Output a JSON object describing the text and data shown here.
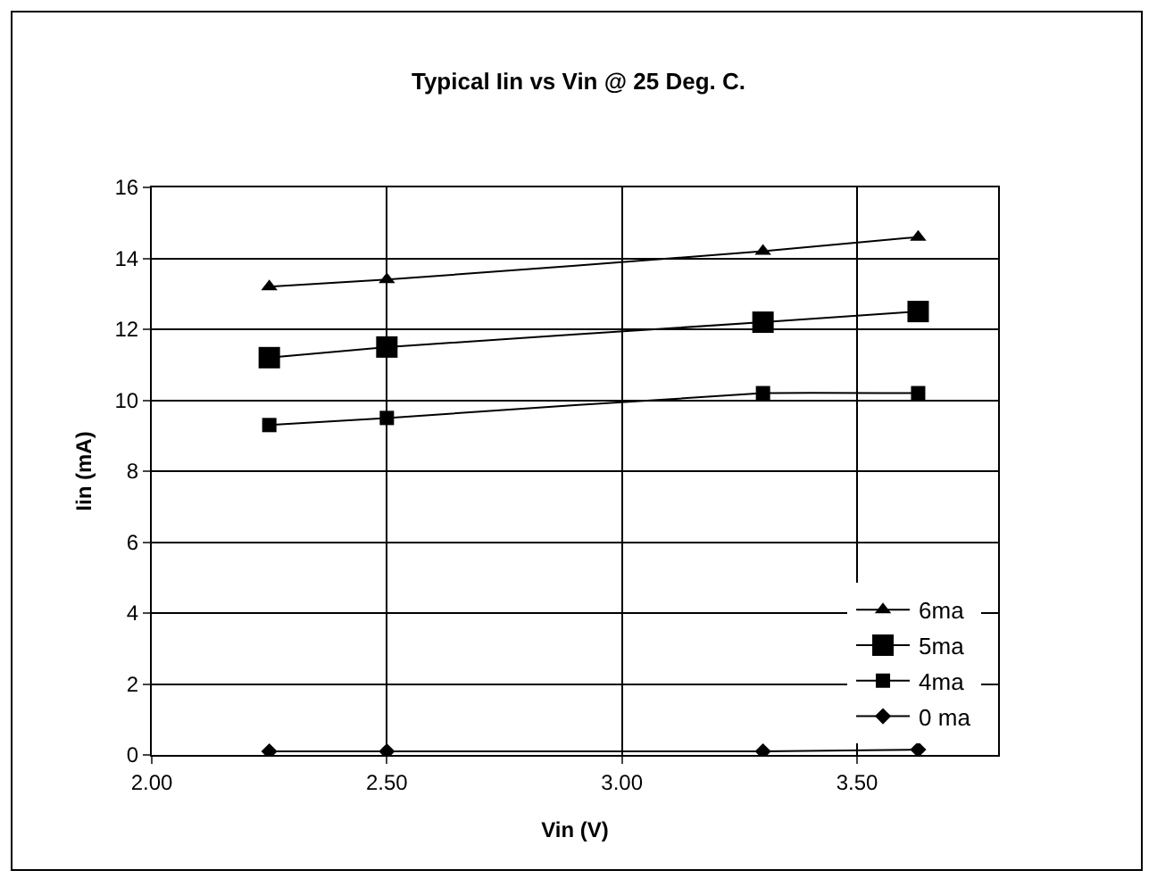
{
  "chart_data": {
    "type": "line",
    "title": "Typical Iin vs Vin @ 25 Deg. C.",
    "xlabel": "Vin (V)",
    "ylabel": "Iin (mA)",
    "xlim": [
      2.0,
      3.8
    ],
    "xticks": [
      {
        "value": 2.0,
        "label": "2.00"
      },
      {
        "value": 2.5,
        "label": "2.50"
      },
      {
        "value": 3.0,
        "label": "3.00"
      },
      {
        "value": 3.5,
        "label": "3.50"
      }
    ],
    "ylim": [
      0,
      16
    ],
    "yticks": [
      0,
      2,
      4,
      6,
      8,
      10,
      12,
      14,
      16
    ],
    "x": [
      2.25,
      2.5,
      3.3,
      3.63
    ],
    "series": [
      {
        "name": "6ma",
        "color": "#000000",
        "marker": "triangle",
        "values": [
          13.2,
          13.4,
          14.2,
          14.6
        ]
      },
      {
        "name": "5ma",
        "color": "#000000",
        "marker": "square",
        "values": [
          11.2,
          11.5,
          12.2,
          12.5
        ]
      },
      {
        "name": "4ma",
        "color": "#000000",
        "marker": "square",
        "values": [
          9.3,
          9.5,
          10.2,
          10.2
        ]
      },
      {
        "name": "0 ma",
        "color": "#000000",
        "marker": "diamond",
        "values": [
          0.1,
          0.1,
          0.1,
          0.15
        ]
      }
    ],
    "grid": true,
    "legend": "bottom right"
  }
}
